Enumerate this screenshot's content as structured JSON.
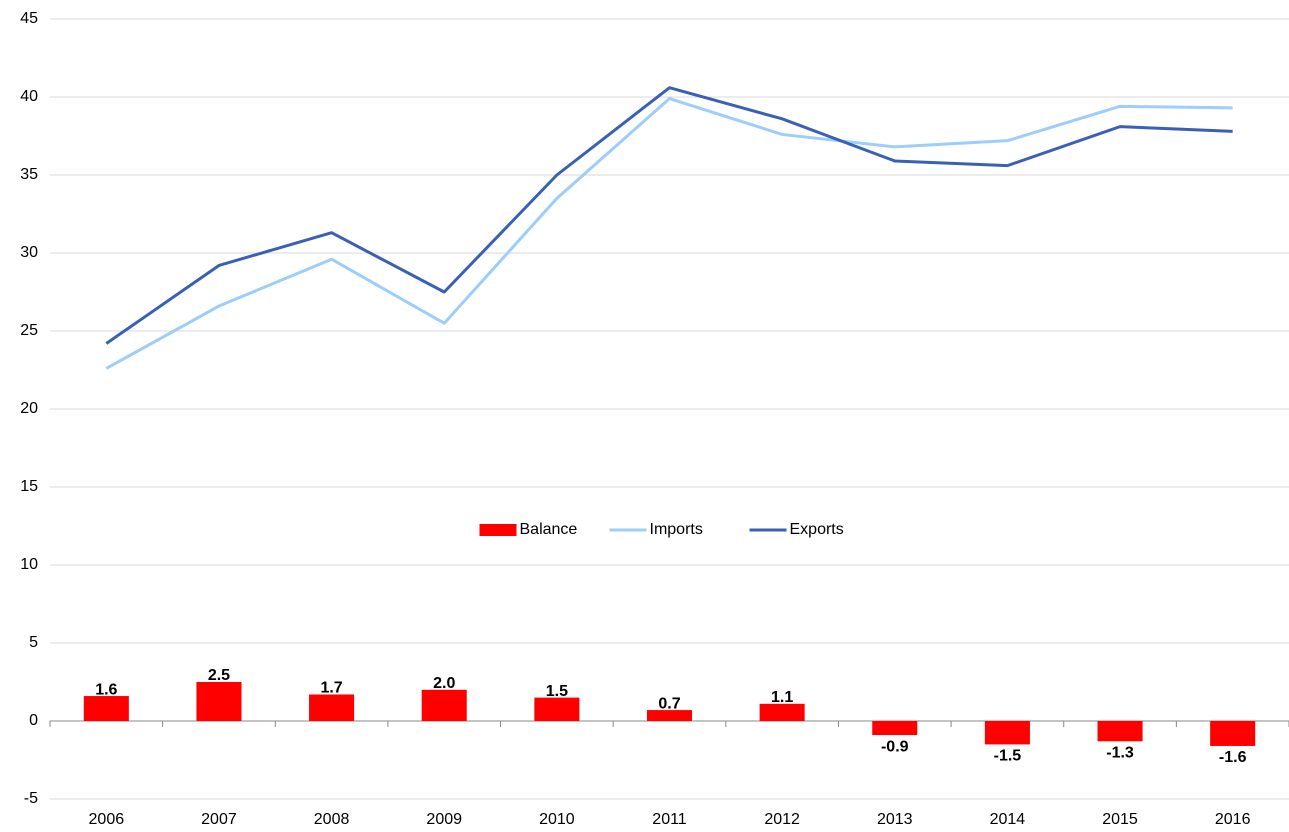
{
  "chart_data": {
    "type": "bar",
    "categories": [
      "2006",
      "2007",
      "2008",
      "2009",
      "2010",
      "2011",
      "2012",
      "2013",
      "2014",
      "2015",
      "2016"
    ],
    "series": [
      {
        "name": "Balance",
        "type": "bar",
        "color": "#ff0000",
        "values": [
          1.6,
          2.5,
          1.7,
          2.0,
          1.5,
          0.7,
          1.1,
          -0.9,
          -1.5,
          -1.3,
          -1.6
        ],
        "value_labels": [
          "1.6",
          "2.5",
          "1.7",
          "2.0",
          "1.5",
          "0.7",
          "1.1",
          "-0.9",
          "-1.5",
          "-1.3",
          "-1.6"
        ]
      },
      {
        "name": "Imports",
        "type": "line",
        "color": "#9dcdfa",
        "values": [
          22.6,
          26.6,
          29.6,
          25.5,
          33.5,
          39.9,
          37.6,
          36.8,
          37.2,
          39.4,
          39.3
        ]
      },
      {
        "name": "Exports",
        "type": "line",
        "color": "#3a60b6",
        "values": [
          24.2,
          29.2,
          31.3,
          27.5,
          35.0,
          40.6,
          38.6,
          35.9,
          35.6,
          38.1,
          37.8
        ]
      }
    ],
    "ylim": [
      -5,
      45
    ],
    "yticks": [
      -5,
      0,
      5,
      10,
      15,
      20,
      25,
      30,
      35,
      40,
      45
    ],
    "grid": true,
    "legend": "center"
  }
}
